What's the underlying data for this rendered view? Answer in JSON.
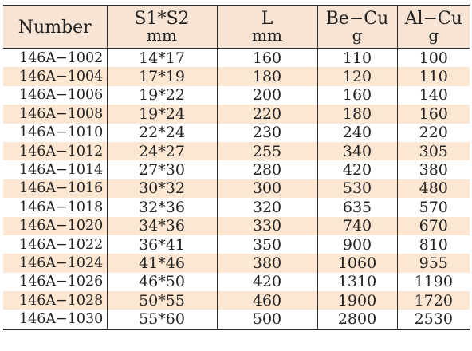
{
  "table": {
    "headers": {
      "number": "Number",
      "s1s2": "S1*S2",
      "s1s2_unit": "mm",
      "l": "L",
      "l_unit": "mm",
      "becu": "Be−Cu",
      "becu_unit": "g",
      "alcu": "Al−Cu",
      "alcu_unit": "g"
    },
    "rows": [
      {
        "number": "146A−1002",
        "s1s2": "14*17",
        "l": "160",
        "becu": "110",
        "alcu": "100"
      },
      {
        "number": "146A−1004",
        "s1s2": "17*19",
        "l": "180",
        "becu": "120",
        "alcu": "110"
      },
      {
        "number": "146A−1006",
        "s1s2": "19*22",
        "l": "200",
        "becu": "160",
        "alcu": "140"
      },
      {
        "number": "146A−1008",
        "s1s2": "19*24",
        "l": "220",
        "becu": "180",
        "alcu": "160"
      },
      {
        "number": "146A−1010",
        "s1s2": "22*24",
        "l": "230",
        "becu": "240",
        "alcu": "220"
      },
      {
        "number": "146A−1012",
        "s1s2": "24*27",
        "l": "255",
        "becu": "340",
        "alcu": "305"
      },
      {
        "number": "146A−1014",
        "s1s2": "27*30",
        "l": "280",
        "becu": "420",
        "alcu": "380"
      },
      {
        "number": "146A−1016",
        "s1s2": "30*32",
        "l": "300",
        "becu": "530",
        "alcu": "480"
      },
      {
        "number": "146A−1018",
        "s1s2": "32*36",
        "l": "320",
        "becu": "635",
        "alcu": "570"
      },
      {
        "number": "146A−1020",
        "s1s2": "34*36",
        "l": "330",
        "becu": "740",
        "alcu": "670"
      },
      {
        "number": "146A−1022",
        "s1s2": "36*41",
        "l": "350",
        "becu": "900",
        "alcu": "810"
      },
      {
        "number": "146A−1024",
        "s1s2": "41*46",
        "l": "380",
        "becu": "1060",
        "alcu": "955"
      },
      {
        "number": "146A−1026",
        "s1s2": "46*50",
        "l": "420",
        "becu": "1310",
        "alcu": "1190"
      },
      {
        "number": "146A−1028",
        "s1s2": "50*55",
        "l": "460",
        "becu": "1900",
        "alcu": "1720"
      },
      {
        "number": "146A−1030",
        "s1s2": "55*60",
        "l": "500",
        "becu": "2800",
        "alcu": "2530"
      }
    ]
  },
  "colors": {
    "header_bg": "#f8e4d4",
    "stripe_bg": "#fde6d2",
    "rule": "#2b2b2b"
  }
}
